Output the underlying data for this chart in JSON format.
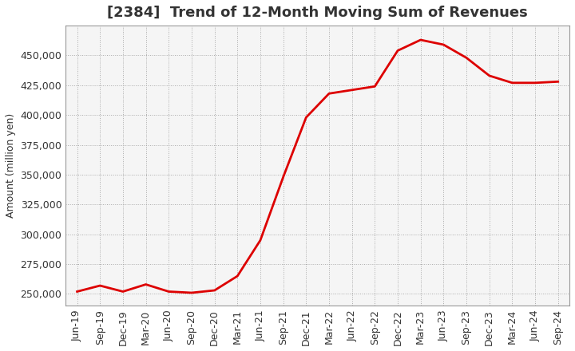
{
  "title": "[2384]  Trend of 12-Month Moving Sum of Revenues",
  "ylabel": "Amount (million yen)",
  "background_color": "#ffffff",
  "plot_bg_color": "#f5f5f5",
  "grid_color": "#aaaaaa",
  "line_color": "#dd0000",
  "ylim": [
    240000,
    475000
  ],
  "yticks": [
    250000,
    275000,
    300000,
    325000,
    350000,
    375000,
    400000,
    425000,
    450000
  ],
  "dates": [
    "Jun-19",
    "Sep-19",
    "Dec-19",
    "Mar-20",
    "Jun-20",
    "Sep-20",
    "Dec-20",
    "Mar-21",
    "Jun-21",
    "Sep-21",
    "Dec-21",
    "Mar-22",
    "Jun-22",
    "Sep-22",
    "Dec-22",
    "Mar-23",
    "Jun-23",
    "Sep-23",
    "Dec-23",
    "Mar-24",
    "Jun-24",
    "Sep-24"
  ],
  "values": [
    252000,
    257000,
    252000,
    258000,
    252000,
    251000,
    253000,
    265000,
    295000,
    348000,
    398000,
    418000,
    421000,
    424000,
    454000,
    463000,
    459000,
    448000,
    433000,
    427000,
    427000,
    428000
  ],
  "title_fontsize": 13,
  "ylabel_fontsize": 9,
  "tick_fontsize": 9,
  "line_width": 2.0
}
